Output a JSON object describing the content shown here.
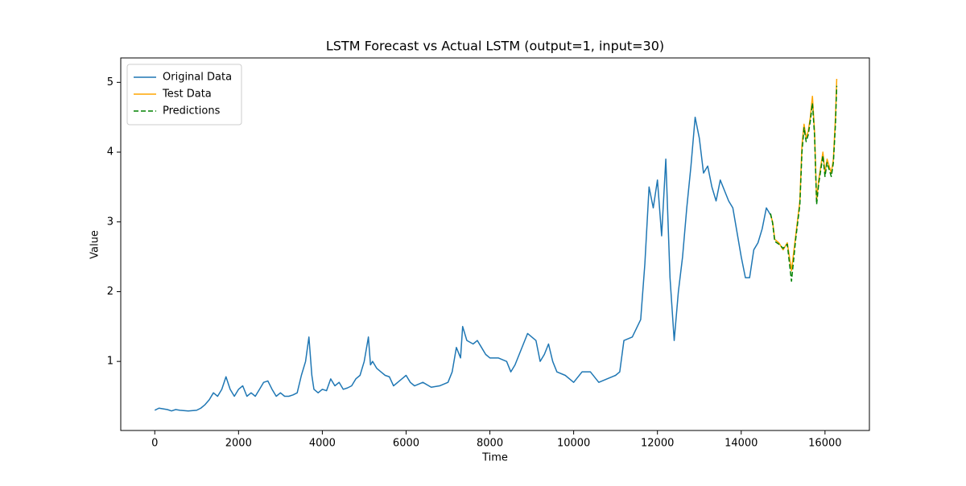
{
  "chart_data": {
    "type": "line",
    "title": "LSTM Forecast vs Actual LSTM (output=1, input=30)",
    "x_label": "Time",
    "y_label": "Value",
    "xlim": [
      -812,
      17060
    ],
    "ylim": [
      0.01,
      5.35
    ],
    "xticks": [
      0,
      2000,
      4000,
      6000,
      8000,
      10000,
      12000,
      14000,
      16000
    ],
    "yticks": [
      1,
      2,
      3,
      4,
      5
    ],
    "legend": "upper left",
    "series": [
      {
        "name": "Original Data",
        "color": "#1f77b4",
        "linestyle": "solid",
        "x": [
          0,
          100,
          200,
          300,
          400,
          500,
          600,
          800,
          1000,
          1100,
          1200,
          1300,
          1400,
          1500,
          1600,
          1700,
          1800,
          1900,
          2000,
          2100,
          2200,
          2300,
          2400,
          2500,
          2600,
          2700,
          2800,
          2900,
          3000,
          3100,
          3200,
          3300,
          3400,
          3500,
          3600,
          3680,
          3750,
          3800,
          3900,
          4000,
          4100,
          4200,
          4300,
          4400,
          4500,
          4600,
          4700,
          4800,
          4900,
          5000,
          5100,
          5150,
          5200,
          5300,
          5400,
          5500,
          5600,
          5700,
          5800,
          5900,
          6000,
          6100,
          6200,
          6400,
          6600,
          6800,
          7000,
          7100,
          7200,
          7300,
          7350,
          7450,
          7600,
          7700,
          7800,
          7900,
          8000,
          8200,
          8400,
          8500,
          8600,
          8700,
          8800,
          8900,
          9000,
          9100,
          9200,
          9300,
          9400,
          9500,
          9600,
          9800,
          10000,
          10200,
          10400,
          10600,
          10800,
          11000,
          11100,
          11200,
          11400,
          11600,
          11700,
          11800,
          11900,
          12000,
          12100,
          12200,
          12300,
          12400,
          12500,
          12600,
          12700,
          12800,
          12900,
          13000,
          13100,
          13200,
          13300,
          13400,
          13500,
          13700,
          13800,
          14000,
          14100,
          14200,
          14300,
          14400,
          14500,
          14600,
          14700
        ],
        "values": [
          0.3,
          0.33,
          0.32,
          0.31,
          0.29,
          0.31,
          0.3,
          0.29,
          0.3,
          0.33,
          0.38,
          0.45,
          0.55,
          0.5,
          0.6,
          0.78,
          0.6,
          0.5,
          0.6,
          0.65,
          0.5,
          0.55,
          0.5,
          0.6,
          0.7,
          0.72,
          0.6,
          0.5,
          0.55,
          0.5,
          0.5,
          0.52,
          0.55,
          0.8,
          1.0,
          1.35,
          0.8,
          0.6,
          0.55,
          0.6,
          0.58,
          0.75,
          0.65,
          0.7,
          0.6,
          0.62,
          0.65,
          0.75,
          0.8,
          1.0,
          1.35,
          0.95,
          1.0,
          0.9,
          0.85,
          0.8,
          0.78,
          0.65,
          0.7,
          0.75,
          0.8,
          0.7,
          0.65,
          0.7,
          0.63,
          0.65,
          0.7,
          0.85,
          1.2,
          1.05,
          1.5,
          1.3,
          1.25,
          1.3,
          1.2,
          1.1,
          1.05,
          1.05,
          1.0,
          0.85,
          0.95,
          1.1,
          1.25,
          1.4,
          1.35,
          1.3,
          1.0,
          1.1,
          1.25,
          1.0,
          0.85,
          0.8,
          0.7,
          0.85,
          0.85,
          0.7,
          0.75,
          0.8,
          0.85,
          1.3,
          1.35,
          1.6,
          2.4,
          3.5,
          3.2,
          3.6,
          2.8,
          3.9,
          2.2,
          1.3,
          2.0,
          2.5,
          3.2,
          3.8,
          4.5,
          4.2,
          3.7,
          3.8,
          3.5,
          3.3,
          3.6,
          3.3,
          3.2,
          2.5,
          2.2,
          2.2,
          2.6,
          2.7,
          2.9,
          3.2,
          3.1
        ]
      },
      {
        "name": "Test Data",
        "color": "#ffa500",
        "linestyle": "solid",
        "x": [
          14700,
          14750,
          14800,
          14900,
          15000,
          15100,
          15200,
          15300,
          15400,
          15450,
          15500,
          15550,
          15600,
          15650,
          15700,
          15750,
          15800,
          15850,
          15900,
          15950,
          16000,
          16050,
          16100,
          16150,
          16200,
          16250,
          16280
        ],
        "values": [
          3.1,
          3.0,
          2.75,
          2.7,
          2.6,
          2.7,
          2.3,
          2.8,
          3.3,
          4.1,
          4.4,
          4.2,
          4.3,
          4.5,
          4.8,
          4.3,
          3.3,
          3.6,
          3.8,
          4.0,
          3.7,
          3.9,
          3.8,
          3.7,
          3.9,
          4.5,
          5.05
        ]
      },
      {
        "name": "Predictions",
        "color": "#008000",
        "linestyle": "dashed",
        "x": [
          14700,
          14750,
          14800,
          14900,
          15000,
          15100,
          15200,
          15300,
          15400,
          15450,
          15500,
          15550,
          15600,
          15650,
          15700,
          15750,
          15800,
          15850,
          15900,
          15950,
          16000,
          16050,
          16100,
          16150,
          16200,
          16250,
          16280
        ],
        "values": [
          3.12,
          2.98,
          2.72,
          2.68,
          2.62,
          2.68,
          2.15,
          2.75,
          3.25,
          4.0,
          4.35,
          4.15,
          4.25,
          4.45,
          4.7,
          4.25,
          3.25,
          3.55,
          3.75,
          3.95,
          3.65,
          3.85,
          3.75,
          3.65,
          3.85,
          4.4,
          4.95
        ]
      }
    ]
  }
}
